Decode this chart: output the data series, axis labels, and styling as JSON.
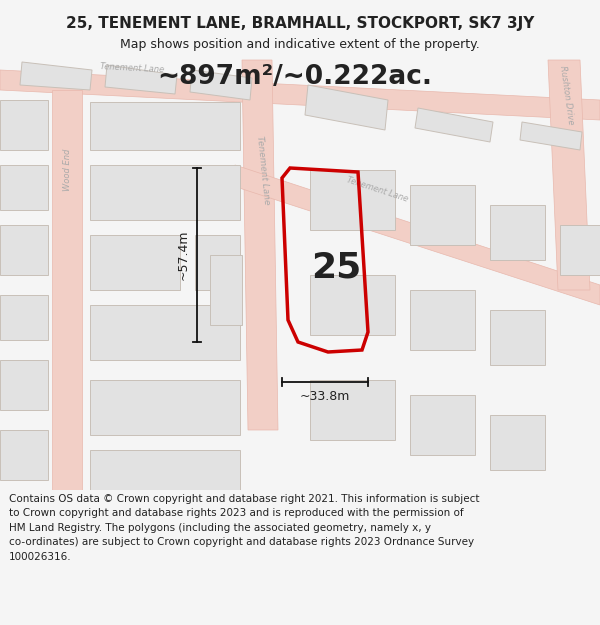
{
  "title_line1": "25, TENEMENT LANE, BRAMHALL, STOCKPORT, SK7 3JY",
  "title_line2": "Map shows position and indicative extent of the property.",
  "area_text": "~897m²/~0.222ac.",
  "dim_width": "~33.8m",
  "dim_height": "~57.4m",
  "number_label": "25",
  "footer_lines": [
    "Contains OS data © Crown copyright and database right 2021. This information is subject",
    "to Crown copyright and database rights 2023 and is reproduced with the permission of",
    "HM Land Registry. The polygons (including the associated geometry, namely x, y",
    "co-ordinates) are subject to Crown copyright and database rights 2023 Ordnance Survey",
    "100026316."
  ],
  "bg_color": "#f5f5f5",
  "map_bg": "#ffffff",
  "road_color": "#f2cfc6",
  "road_edge": "#e8b8ad",
  "building_fill": "#e2e2e2",
  "building_edge": "#c8c0b8",
  "plot_color": "#cc0000",
  "plot_lw": 2.5,
  "dim_color": "#111111",
  "text_color": "#222222",
  "road_text_color": "#aaaaaa",
  "title_fs": 11,
  "subtitle_fs": 9,
  "area_fs": 19,
  "label_fs": 26,
  "dim_fs": 9,
  "footer_fs": 7.5,
  "road_label_fs": 6
}
